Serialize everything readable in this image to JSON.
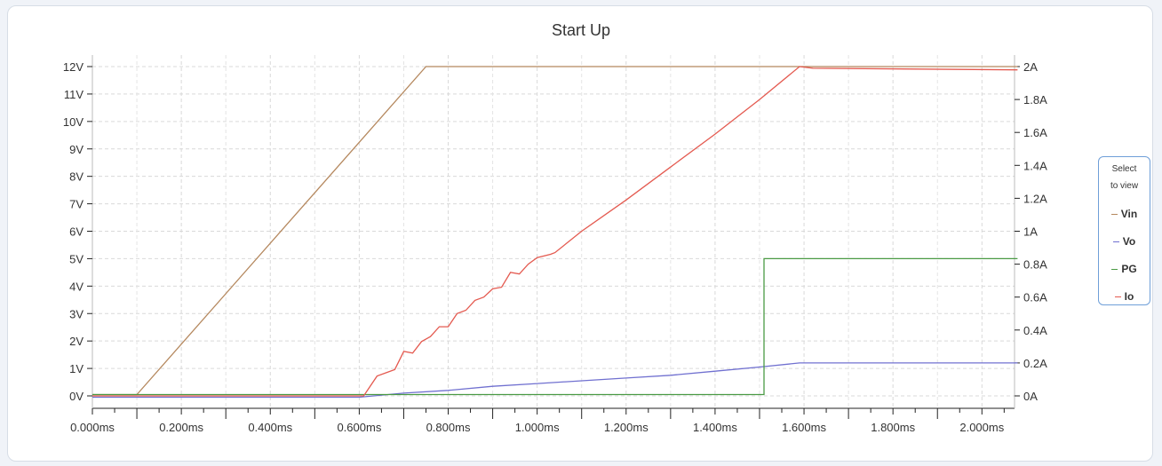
{
  "chart_data": {
    "type": "line",
    "title": "Start Up",
    "xlabel": "",
    "ylabel_left": "",
    "ylabel_right": "",
    "x_unit": "ms",
    "xlim": [
      0,
      2.08
    ],
    "ylim_left": [
      -0.25,
      12.25
    ],
    "ylim_right": [
      -0.0417,
      2.0417
    ],
    "x_ticks": [
      "0.000ms",
      "0.200ms",
      "0.400ms",
      "0.600ms",
      "0.800ms",
      "1.000ms",
      "1.200ms",
      "1.400ms",
      "1.600ms",
      "1.800ms",
      "2.000ms"
    ],
    "y_left_ticks": [
      "0V",
      "1V",
      "2V",
      "3V",
      "4V",
      "5V",
      "6V",
      "7V",
      "8V",
      "9V",
      "10V",
      "11V",
      "12V"
    ],
    "y_right_ticks": [
      "0A",
      "0.2A",
      "0.4A",
      "0.6A",
      "0.8A",
      "1A",
      "1.2A",
      "1.4A",
      "1.6A",
      "1.8A",
      "2A"
    ],
    "grid": true,
    "legend_position": "right",
    "series": [
      {
        "name": "Vin",
        "color": "#b5885e",
        "axis": "left",
        "x": [
          0,
          0.1,
          0.75,
          2.08
        ],
        "y": [
          0.05,
          0.05,
          12,
          12
        ]
      },
      {
        "name": "Vo",
        "color": "#7070d0",
        "axis": "left",
        "x": [
          0,
          0.6,
          0.7,
          0.8,
          0.9,
          1.0,
          1.1,
          1.2,
          1.3,
          1.4,
          1.5,
          1.59,
          2.08
        ],
        "y": [
          -0.05,
          -0.05,
          0.1,
          0.2,
          0.35,
          0.45,
          0.55,
          0.65,
          0.75,
          0.9,
          1.05,
          1.2,
          1.2
        ]
      },
      {
        "name": "PG",
        "color": "#4a9a44",
        "axis": "left",
        "x": [
          0,
          1.51,
          1.51,
          2.08
        ],
        "y": [
          0.05,
          0.05,
          5,
          5
        ]
      },
      {
        "name": "Io",
        "color": "#e45a50",
        "axis": "right",
        "x": [
          0,
          0.61,
          0.64,
          0.66,
          0.68,
          0.7,
          0.72,
          0.74,
          0.76,
          0.78,
          0.8,
          0.82,
          0.84,
          0.86,
          0.88,
          0.9,
          0.92,
          0.94,
          0.96,
          0.98,
          1.0,
          1.03,
          1.04,
          1.1,
          1.2,
          1.3,
          1.4,
          1.5,
          1.59,
          1.62,
          2.08
        ],
        "y": [
          0,
          0,
          0.12,
          0.14,
          0.16,
          0.27,
          0.26,
          0.33,
          0.36,
          0.42,
          0.42,
          0.5,
          0.52,
          0.58,
          0.6,
          0.65,
          0.66,
          0.75,
          0.74,
          0.8,
          0.84,
          0.86,
          0.87,
          1.0,
          1.19,
          1.39,
          1.59,
          1.8,
          2.0,
          1.99,
          1.98
        ]
      }
    ]
  },
  "legend": {
    "header_line1": "Select",
    "header_line2": "to view"
  }
}
